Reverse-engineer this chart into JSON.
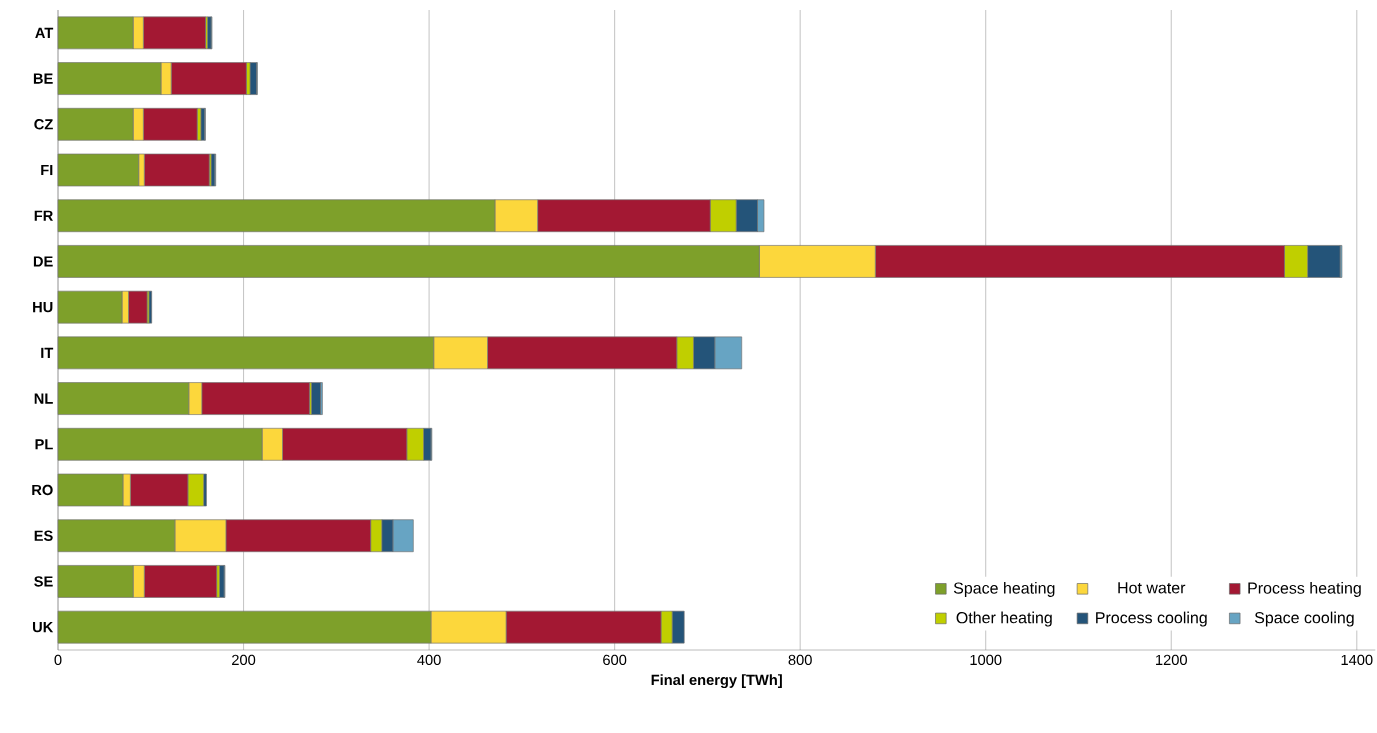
{
  "chart_data": {
    "type": "bar",
    "orientation": "horizontal",
    "stacked": true,
    "xlabel": "Final energy [TWh]",
    "categories": [
      "AT",
      "BE",
      "CZ",
      "FI",
      "FR",
      "DE",
      "HU",
      "IT",
      "NL",
      "PL",
      "RO",
      "ES",
      "SE",
      "UK"
    ],
    "series": [
      {
        "name": "Space heating",
        "color": "#7ea02a",
        "values": [
          81,
          111,
          81,
          87,
          471,
          756,
          69,
          405,
          141,
          220,
          70,
          126,
          81,
          402
        ]
      },
      {
        "name": "Hot water",
        "color": "#fcd73c",
        "values": [
          11,
          11,
          11,
          6,
          46,
          125,
          7,
          58,
          14,
          22,
          8,
          55,
          12,
          81
        ]
      },
      {
        "name": "Process heating",
        "color": "#a31833",
        "values": [
          67,
          81,
          58,
          70,
          186,
          441,
          20,
          204,
          116,
          134,
          62,
          156,
          78,
          167
        ]
      },
      {
        "name": "Other heating",
        "color": "#c0cf00",
        "values": [
          2,
          4,
          4,
          2,
          28,
          25,
          2,
          18,
          2,
          18,
          17,
          12,
          3,
          12
        ]
      },
      {
        "name": "Process cooling",
        "color": "#245479",
        "values": [
          4,
          7,
          4,
          4,
          23,
          35,
          3,
          23,
          10,
          8,
          3,
          12,
          5,
          13
        ]
      },
      {
        "name": "Space cooling",
        "color": "#67a4c3",
        "values": [
          1,
          1,
          1,
          1,
          7,
          2,
          0,
          29,
          2,
          1,
          0,
          22,
          1,
          0
        ]
      }
    ],
    "xlim": [
      0,
      1420
    ],
    "xticks": [
      0,
      200,
      400,
      600,
      800,
      1000,
      1200,
      1400
    ],
    "grid": "x",
    "legend": "bottom right"
  }
}
